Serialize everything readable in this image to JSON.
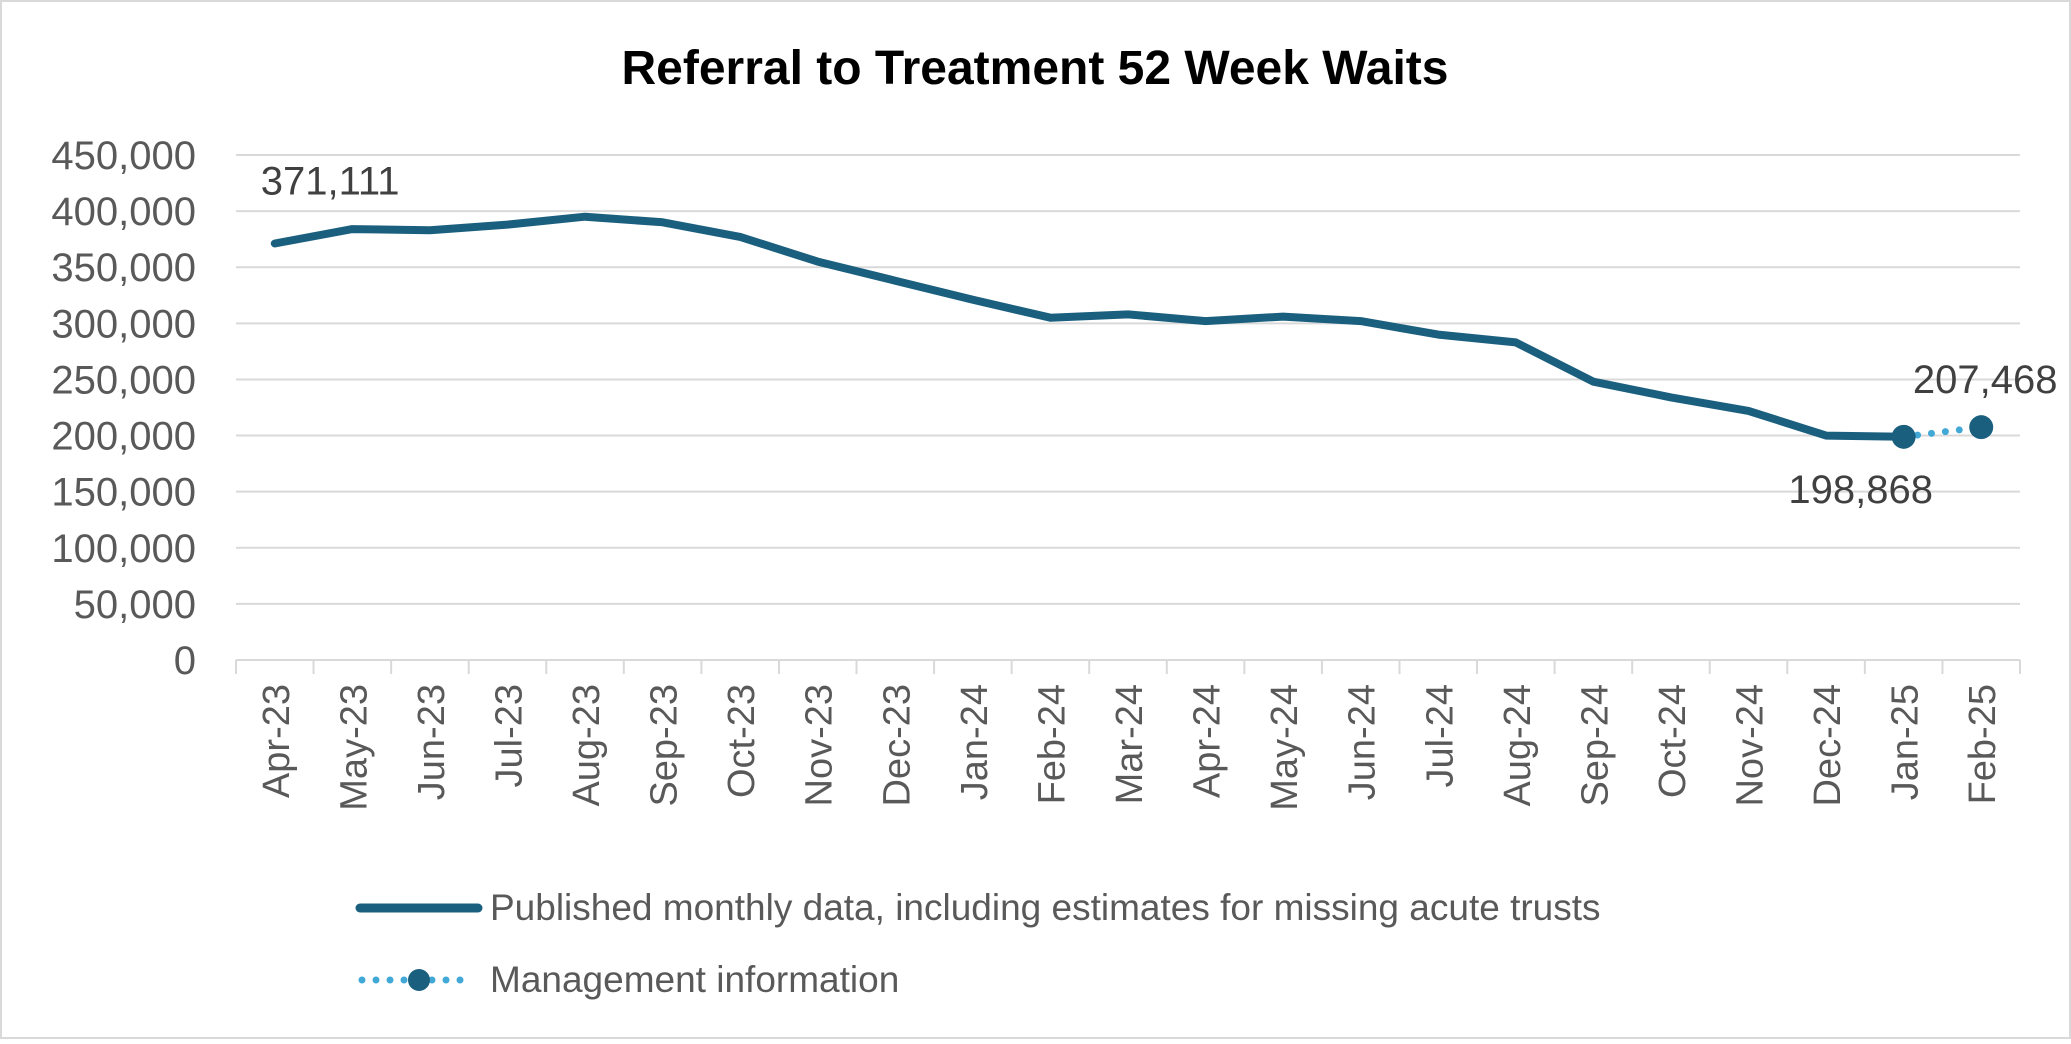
{
  "chart_data": {
    "type": "line",
    "title": "Referral to Treatment 52 Week Waits",
    "xlabel": "",
    "ylabel": "",
    "ylim": [
      0,
      450000
    ],
    "yticks": [
      0,
      50000,
      100000,
      150000,
      200000,
      250000,
      300000,
      350000,
      400000,
      450000
    ],
    "ytick_labels": [
      "0",
      "50,000",
      "100,000",
      "150,000",
      "200,000",
      "250,000",
      "300,000",
      "350,000",
      "400,000",
      "450,000"
    ],
    "grid": true,
    "categories": [
      "Apr-23",
      "May-23",
      "Jun-23",
      "Jul-23",
      "Aug-23",
      "Sep-23",
      "Oct-23",
      "Nov-23",
      "Dec-23",
      "Jan-24",
      "Feb-24",
      "Mar-24",
      "Apr-24",
      "May-24",
      "Jun-24",
      "Jul-24",
      "Aug-24",
      "Sep-24",
      "Oct-24",
      "Nov-24",
      "Dec-24",
      "Jan-25",
      "Feb-25"
    ],
    "series": [
      {
        "name": "Published monthly data, including estimates for missing acute trusts",
        "style": "solid",
        "color": "#1b5f7f",
        "values": [
          371111,
          384000,
          383000,
          388000,
          395000,
          390000,
          377000,
          355000,
          338000,
          321000,
          305000,
          308000,
          302000,
          306000,
          302000,
          290000,
          283000,
          248000,
          234000,
          222000,
          200000,
          198868,
          null
        ]
      },
      {
        "name": "Management information",
        "style": "dotted",
        "color": "#42a8d6",
        "marker_color": "#1b5f7f",
        "values": [
          null,
          null,
          null,
          null,
          null,
          null,
          null,
          null,
          null,
          null,
          null,
          null,
          null,
          null,
          null,
          null,
          null,
          null,
          null,
          null,
          null,
          198868,
          207468
        ]
      }
    ],
    "annotations": [
      {
        "category": "Apr-23",
        "value": 371111,
        "text": "371,111",
        "position": "above"
      },
      {
        "category": "Jan-25",
        "value": 198868,
        "text": "198,868",
        "position": "below"
      },
      {
        "category": "Feb-25",
        "value": 207468,
        "text": "207,468",
        "position": "above"
      }
    ],
    "legend": {
      "placement": "bottom",
      "items": [
        {
          "label": "Published monthly data, including estimates for missing acute trusts",
          "style": "solid"
        },
        {
          "label": "Management information",
          "style": "dotted-marker"
        }
      ]
    },
    "colors": {
      "text": "#595959",
      "title": "#000000",
      "grid": "#d9d9d9",
      "axis": "#d9d9d9",
      "frame": "#d9d9d9"
    }
  }
}
